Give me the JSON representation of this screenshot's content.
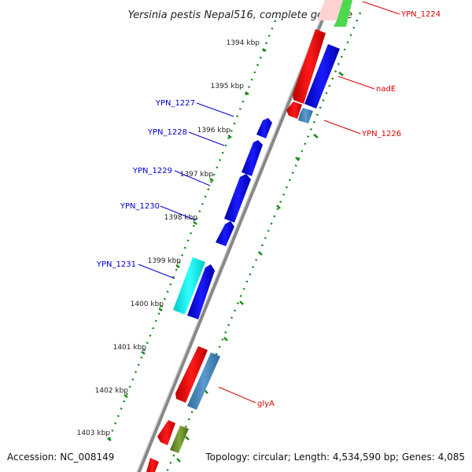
{
  "map": {
    "title": "Yersinia pestis Nepal516, complete genome",
    "accession": "Accession: NC_008149",
    "summary": "Topology: circular; Length: 4,534,590 bp; Genes: 4,085",
    "colors": {
      "backbone": "#888888",
      "dots": "#1a8a1a",
      "forward_label": "#0000cc",
      "reverse_label": "#dd0000"
    },
    "ticks": [
      "1394 kbp",
      "1395 kbp",
      "1396 kbp",
      "1397 kbp",
      "1398 kbp",
      "1399 kbp",
      "1400 kbp",
      "1401 kbp",
      "1402 kbp",
      "1403 kbp"
    ],
    "genes": [
      {
        "name": "YPN_1224",
        "strand": "reverse"
      },
      {
        "name": "nadE",
        "strand": "reverse"
      },
      {
        "name": "YPN_1226",
        "strand": "reverse"
      },
      {
        "name": "YPN_1227",
        "strand": "forward"
      },
      {
        "name": "YPN_1228",
        "strand": "forward"
      },
      {
        "name": "YPN_1229",
        "strand": "forward"
      },
      {
        "name": "YPN_1230",
        "strand": "forward"
      },
      {
        "name": "YPN_1231",
        "strand": "forward"
      },
      {
        "name": "glyA",
        "strand": "reverse"
      }
    ]
  }
}
